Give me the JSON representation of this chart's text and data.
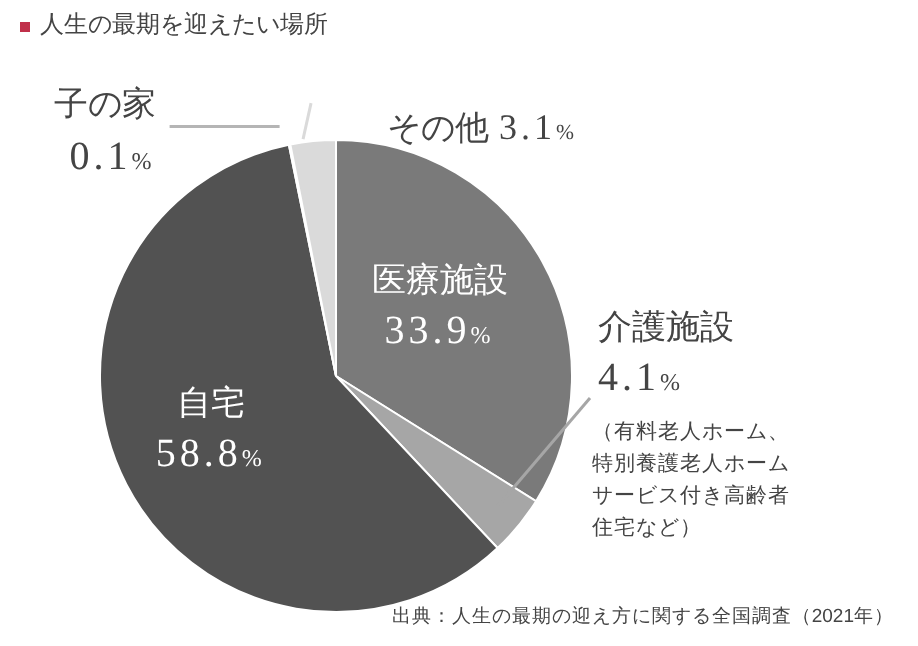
{
  "chart_data": {
    "type": "pie",
    "title": "人生の最期を迎えたい場所",
    "categories": [
      "医療施設",
      "介護施設",
      "自宅",
      "子の家",
      "その他"
    ],
    "values": [
      33.9,
      4.1,
      58.8,
      0.1,
      3.1
    ],
    "value_labels": [
      "33.9%",
      "4.1%",
      "58.8%",
      "0.1%",
      "3.1%"
    ],
    "colors": [
      "#7a7a7a",
      "#a6a6a6",
      "#525252",
      "#b5b5b5",
      "#dadada"
    ],
    "annotations": [
      "（有料老人ホーム、特別養護老人ホームサービス付き高齢者住宅など）",
      "出典：人生の最期の迎え方に関する全国調査（2021年）"
    ]
  }
}
